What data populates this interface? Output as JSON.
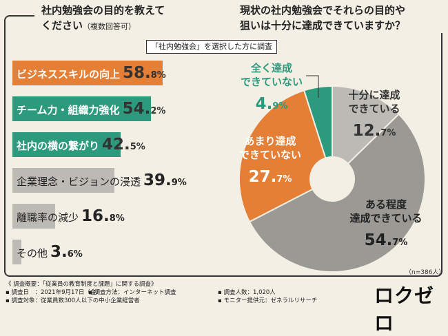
{
  "left_question": {
    "title_line1": "社内勉強会の目的を教えて",
    "title_line2": "ください",
    "title_note": "（複数回答可）"
  },
  "right_question": {
    "title_line1": "現状の社内勉強会でそれらの目的や",
    "title_line2": "狙いは十分に達成できていますか？"
  },
  "selected_note": "「社内勉強会」を選択した方に調査",
  "colors": {
    "orange": "#e57f36",
    "teal": "#2b9a7d",
    "gray": "#bcbab5",
    "gray_dark": "#9a9994",
    "frame": "#333333"
  },
  "chart_data": [
    {
      "type": "bar",
      "orientation": "horizontal",
      "categories": [
        "ビジネススキルの向上",
        "チーム力・組織力強化",
        "社内の横の繋がり",
        "企業理念・ビジョンの浸透",
        "離職率の減少",
        "その他"
      ],
      "values": [
        58.8,
        54.2,
        42.5,
        39.9,
        16.8,
        3.6
      ],
      "value_labels": [
        {
          "int": "58.",
          "dec": "8%"
        },
        {
          "int": "54.",
          "dec": "2%"
        },
        {
          "int": "42.",
          "dec": "5%"
        },
        {
          "int": "39.",
          "dec": "9%"
        },
        {
          "int": "16.",
          "dec": "8%"
        },
        {
          "int": "3.",
          "dec": "6%"
        }
      ],
      "bar_colors": [
        "#e57f36",
        "#2b9a7d",
        "#2b9a7d",
        "#bcbab5",
        "#bcbab5",
        "#bcbab5"
      ],
      "xlim": [
        0,
        100
      ]
    },
    {
      "type": "pie",
      "style": "donut",
      "labels": [
        "全く達成できていない",
        "十分に達成できている",
        "ある程度達成できている",
        "あまり達成できていない"
      ],
      "label_lines": [
        [
          "全く達成",
          "できていない"
        ],
        [
          "十分に達成",
          "できている"
        ],
        [
          "ある程度",
          "達成できている"
        ],
        [
          "あまり達成",
          "できていない"
        ]
      ],
      "values": [
        4.9,
        12.7,
        54.7,
        27.7
      ],
      "value_labels": [
        {
          "int": "4.",
          "dec": "9%"
        },
        {
          "int": "12.",
          "dec": "7%"
        },
        {
          "int": "54.",
          "dec": "7%"
        },
        {
          "int": "27.",
          "dec": "7%"
        }
      ],
      "colors": [
        "#2b9a7d",
        "#bcbab5",
        "#9a9994",
        "#e57f36"
      ],
      "sample_size": "（n=386人）"
    }
  ],
  "footer": {
    "heading": "《 調査概要：「従業員の教育制度と課題」に関する調査》",
    "survey_date": "▪ 調査日　：2021年9月17日（金）",
    "survey_method": "▪ 調査方法：インターネット調査",
    "respondents": "▪ 調査人数：1,020人",
    "target": "▪ 調査対象：従業員数300人以下の中小企業経営者",
    "provider": "▪ モニター提供元：ゼネラルリサーチ"
  },
  "logo": "ロクゼロ"
}
